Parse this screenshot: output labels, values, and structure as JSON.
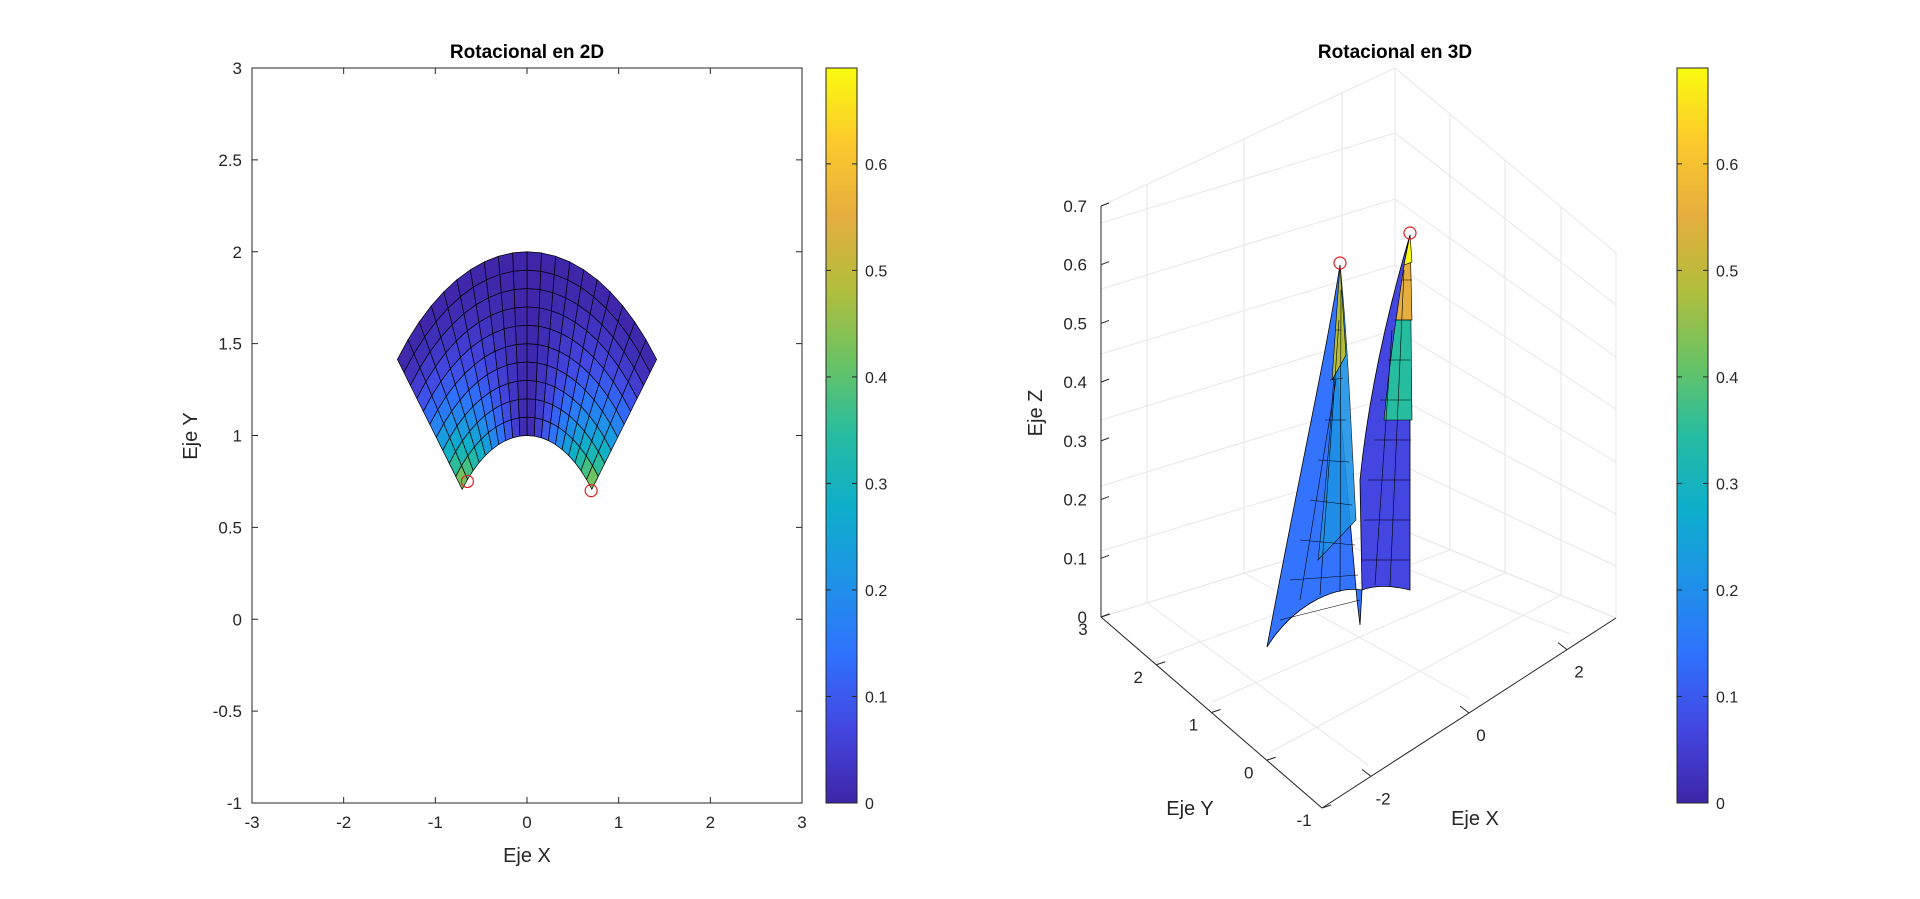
{
  "chart_data": [
    {
      "type": "surface-2d",
      "title": "Rotacional en 2D",
      "xlabel": "Eje X",
      "ylabel": "Eje Y",
      "xlim": [
        -3,
        3
      ],
      "ylim": [
        -1,
        3
      ],
      "xticks": [
        -3,
        -2,
        -1,
        0,
        1,
        2,
        3
      ],
      "xtick_labels": [
        "-3",
        "-2",
        "-1",
        "0",
        "1",
        "2",
        "3"
      ],
      "yticks": [
        -1,
        -0.5,
        0,
        0.5,
        1,
        1.5,
        2,
        2.5,
        3
      ],
      "ytick_labels": [
        "-1",
        "-0.5",
        "0",
        "0.5",
        "1",
        "1.5",
        "2",
        "2.5",
        "3"
      ],
      "surface": {
        "r_range": [
          1,
          2
        ],
        "theta_range_deg": [
          45,
          135
        ],
        "r_steps": 10,
        "theta_steps": 20,
        "value_range": [
          0,
          0.69
        ]
      },
      "markers": [
        {
          "x": -0.65,
          "y": 0.75
        },
        {
          "x": 0.7,
          "y": 0.7
        }
      ],
      "colorbar": {
        "range": [
          0,
          0.69
        ],
        "ticks": [
          0,
          0.1,
          0.2,
          0.3,
          0.4,
          0.5,
          0.6
        ],
        "tick_labels": [
          "0",
          "0.1",
          "0.2",
          "0.3",
          "0.4",
          "0.5",
          "0.6"
        ]
      }
    },
    {
      "type": "surface-3d",
      "title": "Rotacional en 3D",
      "xlabel": "Eje X",
      "ylabel": "Eje Y",
      "zlabel": "Eje Z",
      "xlim": [
        -3,
        3
      ],
      "ylim": [
        -1,
        3
      ],
      "zlim": [
        0,
        0.7
      ],
      "xticks": [
        -2,
        0,
        2
      ],
      "xtick_labels": [
        "-2",
        "0",
        "2"
      ],
      "yticks": [
        -1,
        0,
        1,
        2,
        3
      ],
      "ytick_labels": [
        "-1",
        "0",
        "1",
        "2",
        "3"
      ],
      "zticks": [
        0,
        0.1,
        0.2,
        0.3,
        0.4,
        0.5,
        0.6,
        0.7
      ],
      "ztick_labels": [
        "0",
        "0.1",
        "0.2",
        "0.3",
        "0.4",
        "0.5",
        "0.6",
        "0.7"
      ],
      "markers": [
        {
          "x": -0.7,
          "y": 0.7,
          "z": 0.6
        },
        {
          "x": 0.7,
          "y": 0.7,
          "z": 0.65
        }
      ],
      "colorbar": {
        "range": [
          0,
          0.69
        ],
        "ticks": [
          0,
          0.1,
          0.2,
          0.3,
          0.4,
          0.5,
          0.6
        ],
        "tick_labels": [
          "0",
          "0.1",
          "0.2",
          "0.3",
          "0.4",
          "0.5",
          "0.6"
        ]
      }
    }
  ],
  "colors": {
    "parula": [
      "#3e26a8",
      "#4346e0",
      "#2f71fd",
      "#1e92e7",
      "#0eaecc",
      "#25bca0",
      "#6bc363",
      "#b3bd3b",
      "#e6ae3e",
      "#fcca2c",
      "#f9fb0e"
    ],
    "marker": "#e02020",
    "mesh": "#000000",
    "grid": "#e6e6e6"
  }
}
